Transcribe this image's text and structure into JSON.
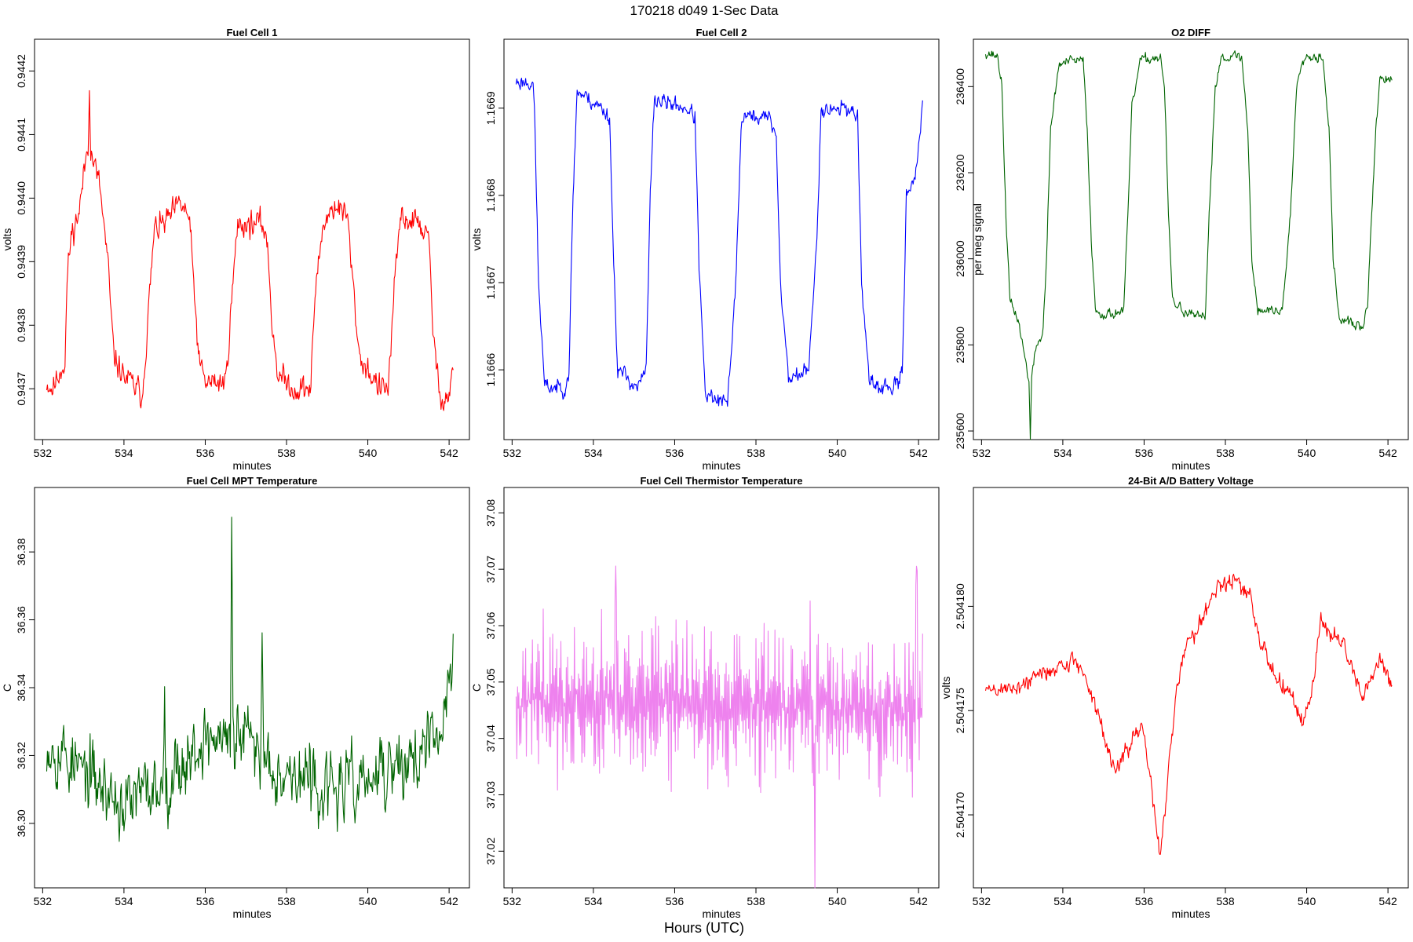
{
  "figure": {
    "suptitle": "170218   d049   1-Sec Data",
    "supxlabel": "Hours (UTC)"
  },
  "chart_data": [
    {
      "type": "line",
      "title": "Fuel Cell 1",
      "xlabel": "minutes",
      "ylabel": "volts",
      "color": "#ff0000",
      "xlim": [
        531.8,
        542.5
      ],
      "ylim": [
        0.94362,
        0.94425
      ],
      "xticks": [
        532,
        534,
        536,
        538,
        540,
        542
      ],
      "yticks": [
        0.9437,
        0.9438,
        0.9439,
        0.944,
        0.9441,
        0.9442
      ],
      "ytick_labels": [
        "0.9437",
        "0.9438",
        "0.9439",
        "0.9440",
        "0.9441",
        "0.9442"
      ],
      "seed": 11,
      "noise": 2.5e-05,
      "spikes": [
        [
          533.15,
          0.00012
        ]
      ],
      "profile": [
        [
          532.1,
          0.94371
        ],
        [
          532.25,
          0.9437
        ],
        [
          532.5,
          0.94374
        ],
        [
          532.55,
          0.94374
        ],
        [
          532.6,
          0.94387
        ],
        [
          532.7,
          0.94394
        ],
        [
          532.9,
          0.94398
        ],
        [
          533.1,
          0.94408
        ],
        [
          533.2,
          0.94407
        ],
        [
          533.4,
          0.94402
        ],
        [
          533.6,
          0.9439
        ],
        [
          533.75,
          0.94375
        ],
        [
          534.0,
          0.94372
        ],
        [
          534.3,
          0.9437
        ],
        [
          534.45,
          0.94369
        ],
        [
          534.6,
          0.94382
        ],
        [
          534.75,
          0.94395
        ],
        [
          535.0,
          0.94396
        ],
        [
          535.4,
          0.94399
        ],
        [
          535.6,
          0.94397
        ],
        [
          535.7,
          0.94388
        ],
        [
          535.85,
          0.94374
        ],
        [
          536.0,
          0.94371
        ],
        [
          536.5,
          0.94371
        ],
        [
          536.65,
          0.94384
        ],
        [
          536.8,
          0.94396
        ],
        [
          537.3,
          0.94396
        ],
        [
          537.5,
          0.94395
        ],
        [
          537.65,
          0.9438
        ],
        [
          537.8,
          0.94372
        ],
        [
          538.2,
          0.9437
        ],
        [
          538.6,
          0.9437
        ],
        [
          538.7,
          0.94385
        ],
        [
          538.9,
          0.94396
        ],
        [
          539.2,
          0.94399
        ],
        [
          539.5,
          0.94397
        ],
        [
          539.65,
          0.94385
        ],
        [
          539.8,
          0.94375
        ],
        [
          540.3,
          0.9437
        ],
        [
          540.5,
          0.9437
        ],
        [
          540.65,
          0.94385
        ],
        [
          540.8,
          0.94397
        ],
        [
          541.3,
          0.94396
        ],
        [
          541.5,
          0.94393
        ],
        [
          541.6,
          0.9438
        ],
        [
          541.75,
          0.94369
        ],
        [
          542.0,
          0.94369
        ],
        [
          542.1,
          0.94374
        ]
      ]
    },
    {
      "type": "line",
      "title": "Fuel Cell 2",
      "xlabel": "minutes",
      "ylabel": "volts",
      "color": "#0000ff",
      "xlim": [
        531.8,
        542.5
      ],
      "ylim": [
        1.16652,
        1.166979
      ],
      "xticks": [
        532,
        534,
        536,
        538,
        540,
        542
      ],
      "yticks": [
        1.1666,
        1.1667,
        1.1668,
        1.1669
      ],
      "ytick_labels": [
        "1.1666",
        "1.1667",
        "1.1668",
        "1.1669"
      ],
      "seed": 23,
      "noise": 1.1e-05,
      "spikes": [],
      "profile": [
        [
          532.1,
          1.16693
        ],
        [
          532.5,
          1.16693
        ],
        [
          532.55,
          1.1669
        ],
        [
          532.65,
          1.1667
        ],
        [
          532.8,
          1.16658
        ],
        [
          533.3,
          1.16658
        ],
        [
          533.4,
          1.1666
        ],
        [
          533.5,
          1.1668
        ],
        [
          533.6,
          1.16692
        ],
        [
          534.2,
          1.1669
        ],
        [
          534.4,
          1.16689
        ],
        [
          534.5,
          1.16672
        ],
        [
          534.6,
          1.1666
        ],
        [
          535.1,
          1.16658
        ],
        [
          535.3,
          1.1666
        ],
        [
          535.4,
          1.1668
        ],
        [
          535.5,
          1.16691
        ],
        [
          536.3,
          1.1669
        ],
        [
          536.5,
          1.16689
        ],
        [
          536.6,
          1.16672
        ],
        [
          536.75,
          1.16657
        ],
        [
          537.3,
          1.16656
        ],
        [
          537.5,
          1.1667
        ],
        [
          537.65,
          1.16689
        ],
        [
          538.3,
          1.16689
        ],
        [
          538.5,
          1.16687
        ],
        [
          538.6,
          1.1667
        ],
        [
          538.8,
          1.16659
        ],
        [
          539.3,
          1.1666
        ],
        [
          539.5,
          1.16675
        ],
        [
          539.6,
          1.1669
        ],
        [
          540.3,
          1.1669
        ],
        [
          540.5,
          1.16689
        ],
        [
          540.6,
          1.1667
        ],
        [
          540.8,
          1.16658
        ],
        [
          541.5,
          1.16658
        ],
        [
          541.6,
          1.1666
        ],
        [
          541.7,
          1.1668
        ],
        [
          541.95,
          1.16683
        ],
        [
          542.1,
          1.1669
        ]
      ]
    },
    {
      "type": "line",
      "title": "O2 DIFF",
      "xlabel": "minutes",
      "ylabel": "per meg signal",
      "color": "#006400",
      "xlim": [
        531.8,
        542.5
      ],
      "ylim": [
        235580,
        236510
      ],
      "xticks": [
        532,
        534,
        536,
        538,
        540,
        542
      ],
      "yticks": [
        235600,
        235800,
        236000,
        236200,
        236400
      ],
      "ytick_labels": [
        "235600",
        "235800",
        "236000",
        "236200",
        "236400"
      ],
      "seed": 37,
      "noise": 14,
      "spikes": [
        [
          533.2,
          -130
        ]
      ],
      "profile": [
        [
          532.1,
          236480
        ],
        [
          532.4,
          236470
        ],
        [
          532.5,
          236400
        ],
        [
          532.6,
          236100
        ],
        [
          532.7,
          235900
        ],
        [
          532.9,
          235860
        ],
        [
          533.2,
          235700
        ],
        [
          533.35,
          235800
        ],
        [
          533.5,
          235820
        ],
        [
          533.6,
          236000
        ],
        [
          533.7,
          236300
        ],
        [
          533.9,
          236450
        ],
        [
          534.2,
          236460
        ],
        [
          534.5,
          236460
        ],
        [
          534.6,
          236300
        ],
        [
          534.7,
          236050
        ],
        [
          534.8,
          235880
        ],
        [
          535.1,
          235870
        ],
        [
          535.5,
          235880
        ],
        [
          535.6,
          236100
        ],
        [
          535.7,
          236350
        ],
        [
          535.9,
          236460
        ],
        [
          536.4,
          236470
        ],
        [
          536.5,
          236400
        ],
        [
          536.6,
          236100
        ],
        [
          536.7,
          235900
        ],
        [
          537.1,
          235870
        ],
        [
          537.5,
          235860
        ],
        [
          537.6,
          236100
        ],
        [
          537.75,
          236400
        ],
        [
          537.9,
          236470
        ],
        [
          538.4,
          236470
        ],
        [
          538.55,
          236300
        ],
        [
          538.65,
          236000
        ],
        [
          538.8,
          235880
        ],
        [
          539.4,
          235880
        ],
        [
          539.6,
          236100
        ],
        [
          539.75,
          236400
        ],
        [
          539.9,
          236470
        ],
        [
          540.4,
          236470
        ],
        [
          540.55,
          236300
        ],
        [
          540.65,
          236000
        ],
        [
          540.8,
          235860
        ],
        [
          541.4,
          235840
        ],
        [
          541.5,
          235900
        ],
        [
          541.6,
          236100
        ],
        [
          541.7,
          236300
        ],
        [
          541.8,
          236420
        ],
        [
          542.1,
          236410
        ]
      ]
    },
    {
      "type": "line",
      "title": "Fuel Cell MPT Temperature",
      "xlabel": "minutes",
      "ylabel": "C",
      "color": "#006400",
      "xlim": [
        531.8,
        542.5
      ],
      "ylim": [
        36.281,
        36.399
      ],
      "xticks": [
        532,
        534,
        536,
        538,
        540,
        542
      ],
      "yticks": [
        36.3,
        36.32,
        36.34,
        36.36,
        36.38
      ],
      "ytick_labels": [
        "36.30",
        "36.32",
        "36.34",
        "36.36",
        "36.38"
      ],
      "seed": 53,
      "noise": 0.012,
      "spikes": [
        [
          536.65,
          0.06
        ],
        [
          537.4,
          0.035
        ],
        [
          535.0,
          0.035
        ]
      ],
      "profile": [
        [
          532.1,
          36.325
        ],
        [
          533.0,
          36.315
        ],
        [
          534.0,
          36.305
        ],
        [
          535.0,
          36.312
        ],
        [
          536.0,
          36.325
        ],
        [
          537.0,
          36.325
        ],
        [
          538.0,
          36.315
        ],
        [
          539.0,
          36.31
        ],
        [
          540.0,
          36.312
        ],
        [
          541.0,
          36.318
        ],
        [
          541.8,
          36.325
        ],
        [
          542.1,
          36.35
        ]
      ]
    },
    {
      "type": "line",
      "title": "Fuel Cell Thermistor Temperature",
      "xlabel": "minutes",
      "ylabel": "C",
      "color": "#ee82ee",
      "xlim": [
        531.8,
        542.5
      ],
      "ylim": [
        37.0135,
        37.0845
      ],
      "xticks": [
        532,
        534,
        536,
        538,
        540,
        542
      ],
      "yticks": [
        37.02,
        37.03,
        37.04,
        37.05,
        37.06,
        37.07,
        37.08
      ],
      "ytick_labels": [
        "37.02",
        "37.03",
        "37.04",
        "37.05",
        "37.06",
        "37.07",
        "37.08"
      ],
      "seed": 71,
      "noise": 0.0085,
      "alternate": true,
      "spikes": [
        [
          534.55,
          0.033
        ],
        [
          539.45,
          -0.031
        ],
        [
          541.95,
          0.034
        ]
      ],
      "profile": [
        [
          532.1,
          37.047
        ],
        [
          537.0,
          37.046
        ],
        [
          542.1,
          37.045
        ]
      ]
    },
    {
      "type": "line",
      "title": "24-Bit A/D Battery Voltage",
      "xlabel": "minutes",
      "ylabel": "volts",
      "color": "#ff0000",
      "xlim": [
        531.8,
        542.5
      ],
      "ylim": [
        2.5041665,
        2.5041857
      ],
      "xticks": [
        532,
        534,
        536,
        538,
        540,
        542
      ],
      "yticks": [
        2.50417,
        2.504175,
        2.50418
      ],
      "ytick_labels": [
        "2.504170",
        "2.504175",
        "2.504180"
      ],
      "seed": 89,
      "noise": 5e-07,
      "spikes": [],
      "profile": [
        [
          532.1,
          2.504176
        ],
        [
          532.5,
          2.504176
        ],
        [
          533.0,
          2.5041762
        ],
        [
          533.5,
          2.5041768
        ],
        [
          534.0,
          2.5041772
        ],
        [
          534.3,
          2.5041774
        ],
        [
          534.6,
          2.5041765
        ],
        [
          535.0,
          2.5041738
        ],
        [
          535.2,
          2.5041725
        ],
        [
          535.5,
          2.5041727
        ],
        [
          535.8,
          2.504174
        ],
        [
          536.0,
          2.5041738
        ],
        [
          536.3,
          2.5041695
        ],
        [
          536.4,
          2.504168
        ],
        [
          536.6,
          2.504172
        ],
        [
          536.8,
          2.504176
        ],
        [
          537.0,
          2.504178
        ],
        [
          537.3,
          2.504179
        ],
        [
          537.8,
          2.504181
        ],
        [
          538.2,
          2.5041812
        ],
        [
          538.6,
          2.5041805
        ],
        [
          538.9,
          2.504178
        ],
        [
          539.2,
          2.5041768
        ],
        [
          539.6,
          2.504176
        ],
        [
          539.9,
          2.5041742
        ],
        [
          540.2,
          2.5041768
        ],
        [
          540.35,
          2.5041795
        ],
        [
          540.5,
          2.5041788
        ],
        [
          540.8,
          2.5041785
        ],
        [
          541.1,
          2.504177
        ],
        [
          541.4,
          2.5041755
        ],
        [
          541.6,
          2.5041765
        ],
        [
          541.8,
          2.5041775
        ],
        [
          542.1,
          2.504176
        ]
      ]
    }
  ]
}
